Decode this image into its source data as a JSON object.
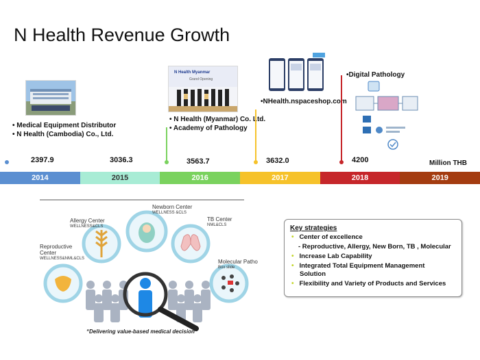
{
  "slide": {
    "title": "N Health Revenue Growth"
  },
  "timeline": {
    "years": [
      {
        "label": "2014",
        "color": "#5b8fd1"
      },
      {
        "label": "2015",
        "color": "#a8ecd5"
      },
      {
        "label": "2016",
        "color": "#7ad25e"
      },
      {
        "label": "2017",
        "color": "#f6c22a"
      },
      {
        "label": "2018",
        "color": "#c6262a"
      },
      {
        "label": "2019",
        "color": "#a43c10"
      }
    ],
    "revenues": [
      "2397.9",
      "3036.3",
      "3563.7",
      "3632.0",
      "4200"
    ],
    "unit": "Million THB",
    "events": {
      "e2014": [
        "• Medical Equipment Distributor",
        "• N Health (Cambodia) Co., Ltd."
      ],
      "e2016": [
        "• N Health (Myanmar) Co.  Ltd.",
        "• Academy of Pathology"
      ],
      "e2017": [
        "•NHealth.nspaceshop.com"
      ],
      "e2018": [
        "•Digital Pathology"
      ]
    },
    "photo_text": {
      "myanmar_banner": "N Health Myanmar",
      "myanmar_sub": "Grand Opening"
    }
  },
  "centers": {
    "reproductive": {
      "name": "Reproductive Center",
      "sub": "WELLNESS&NML&CLS"
    },
    "allergy": {
      "name": "Allergy Center",
      "sub": "WELLNESS&CLS"
    },
    "newborn": {
      "name": "Newborn Center",
      "sub": "WELLNESS &CLS"
    },
    "tb": {
      "name": "TB Center",
      "sub": "NML&CLS"
    },
    "molecular": {
      "name": "Molecular Patho",
      "sub": "Box slide"
    },
    "tagline": "“Delivering value-based medical decision”"
  },
  "strategies": {
    "title": "Key strategies",
    "items": [
      "Center of excellence",
      "- Reproductive, Allergy, New Born, TB , Molecular",
      "Increase Lab Capability",
      "Integrated Total Equipment Management",
      "Solution",
      "Flexibility and Variety of Products and Services"
    ]
  },
  "colors": {
    "bullet": "#c3d62a",
    "circle_ring": "#9fd4e6",
    "people": "#aab3c2",
    "highlight_person": "#1e88e5"
  }
}
